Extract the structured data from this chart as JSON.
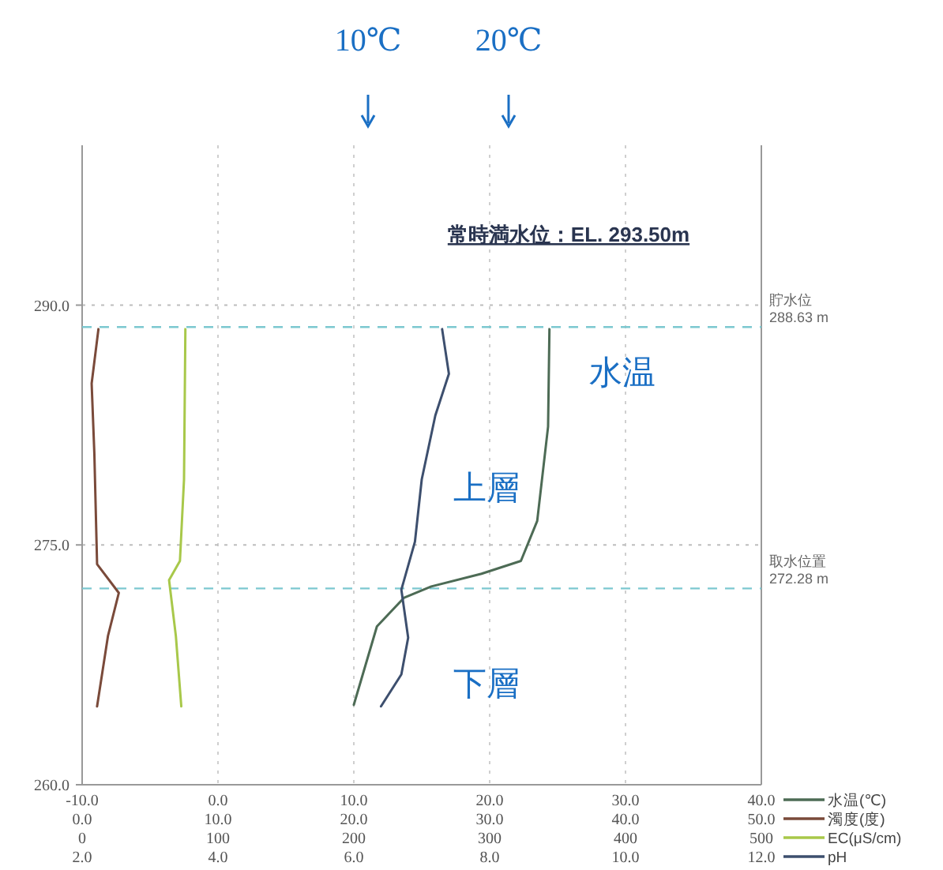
{
  "chart_data": [
    {
      "type": "line",
      "orientation": "horizontal",
      "ylim": [
        260,
        300
      ],
      "yticks": [
        {
          "value": 260,
          "label": "260.0"
        },
        {
          "value": 275,
          "label": "275.0"
        },
        {
          "value": 290,
          "label": "290.0"
        }
      ],
      "xlim": [
        -10,
        40
      ],
      "xticks": [
        {
          "value": -10,
          "label": "-10.0"
        },
        {
          "value": 0,
          "label": "0.0"
        },
        {
          "value": 10,
          "label": "10.0"
        },
        {
          "value": 20,
          "label": "20.0"
        },
        {
          "value": 30,
          "label": "30.0"
        },
        {
          "value": 40,
          "label": "40.0"
        }
      ],
      "x2lim": [
        0,
        50
      ],
      "x2ticks": [
        {
          "value": 0,
          "label": "0.0"
        },
        {
          "value": 10,
          "label": "10.0"
        },
        {
          "value": 20,
          "label": "20.0"
        },
        {
          "value": 30,
          "label": "30.0"
        },
        {
          "value": 40,
          "label": "40.0"
        },
        {
          "value": 50,
          "label": "50.0"
        }
      ],
      "grid": true,
      "legend": "bottom right",
      "series": [
        {
          "name": "水温(℃)",
          "color": "#4d6b55",
          "x": [
            288.5,
            282.4,
            276.5,
            274.0,
            273.2,
            272.4,
            271.7,
            269.9,
            265.0
          ],
          "values": [
            24.4,
            24.3,
            23.5,
            22.3,
            19.4,
            15.7,
            13.7,
            11.7,
            10.0
          ]
        },
        {
          "name": "濁度(度)",
          "color": "#7a4a3a",
          "axis": "x2",
          "x": [
            288.5,
            285.1,
            280.7,
            273.8,
            272.0,
            269.3,
            264.9
          ],
          "values": [
            1.2,
            0.7,
            0.9,
            1.1,
            2.7,
            1.9,
            1.1
          ]
        }
      ],
      "ref_lines": [
        {
          "axis": "y",
          "value": 288.63,
          "label": "貯水位\n288.63 m",
          "color": "#7cc8d0",
          "line_style": "dashed"
        },
        {
          "axis": "y",
          "value": 272.28,
          "label": "取水位置\n272.28 m",
          "color": "#7cc8d0",
          "line_style": "dashed"
        }
      ],
      "annotations": [
        "常時満水位：EL. 293.50m",
        "10℃",
        "20℃",
        "水温",
        "上層",
        "下層"
      ]
    },
    {
      "type": "line",
      "orientation": "horizontal",
      "tick_labels": "x",
      "ylim": [
        260,
        300
      ],
      "xlim": [
        0,
        500
      ],
      "xticks": [
        0,
        100,
        200,
        300,
        400,
        500
      ],
      "x2lim": [
        2,
        12
      ],
      "x2ticks": [
        {
          "value": 2,
          "label": "2.0"
        },
        {
          "value": 4,
          "label": "4.0"
        },
        {
          "value": 6,
          "label": "6.0"
        },
        {
          "value": 8,
          "label": "8.0"
        },
        {
          "value": 10,
          "label": "10.0"
        },
        {
          "value": 12,
          "label": "12.0"
        }
      ],
      "legend": "bottom right",
      "series": [
        {
          "name": "EC(μS/cm)",
          "color": "#a8c84a",
          "x": [
            288.5,
            279.1,
            274.0,
            272.8,
            269.3,
            264.9
          ],
          "values": [
            76,
            75,
            72,
            64,
            69,
            73
          ]
        },
        {
          "name": "pH",
          "color": "#3d4f6e",
          "axis": "x2",
          "x": [
            288.5,
            285.7,
            283.1,
            279.1,
            275.2,
            272.2,
            269.2,
            266.9,
            264.9
          ],
          "values": [
            7.3,
            7.4,
            7.2,
            7.0,
            6.9,
            6.7,
            6.8,
            6.7,
            6.4
          ]
        }
      ]
    }
  ]
}
